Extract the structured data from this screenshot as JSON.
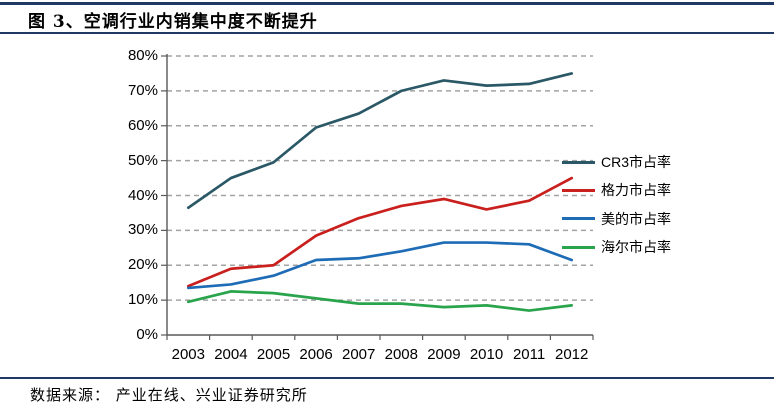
{
  "header": {
    "title": "图 3、空调行业内销集中度不断提升"
  },
  "footer": {
    "source": "数据来源： 产业在线、兴业证券研究所"
  },
  "colors": {
    "rule_navy": "#1F3864",
    "gridline": "#A3A3A3",
    "axis": "#595959",
    "cr3": "#2B5866",
    "gree": "#C9201E",
    "midea": "#1E6CB5",
    "haier": "#2AA44C"
  },
  "chart_data": {
    "type": "line",
    "title": "图 3、空调行业内销集中度不断提升",
    "xlabel": "",
    "ylabel": "",
    "categories": [
      "2003",
      "2004",
      "2005",
      "2006",
      "2007",
      "2008",
      "2009",
      "2010",
      "2011",
      "2012"
    ],
    "series": [
      {
        "name": "CR3市占率",
        "color": "#2B5866",
        "values": [
          36.5,
          45,
          49.5,
          59.5,
          63.5,
          70,
          73,
          71.5,
          72,
          75
        ]
      },
      {
        "name": "格力市占率",
        "color": "#C9201E",
        "values": [
          14,
          19,
          20,
          28.5,
          33.5,
          37,
          39,
          36,
          38.5,
          45
        ]
      },
      {
        "name": "美的市占率",
        "color": "#1E6CB5",
        "values": [
          13.5,
          14.5,
          17,
          21.5,
          22,
          24,
          26.5,
          26.5,
          26,
          21.5
        ]
      },
      {
        "name": "海尔市占率",
        "color": "#2AA44C",
        "values": [
          9.5,
          12.5,
          12,
          10.5,
          9,
          9,
          8,
          8.5,
          7,
          8.5
        ]
      }
    ],
    "ylim": [
      0,
      80
    ],
    "ytick_step": 10,
    "ytick_labels": [
      "0%",
      "10%",
      "20%",
      "30%",
      "40%",
      "50%",
      "60%",
      "70%",
      "80%"
    ],
    "grid": "horizontal-dashed",
    "legend_position": "right"
  }
}
